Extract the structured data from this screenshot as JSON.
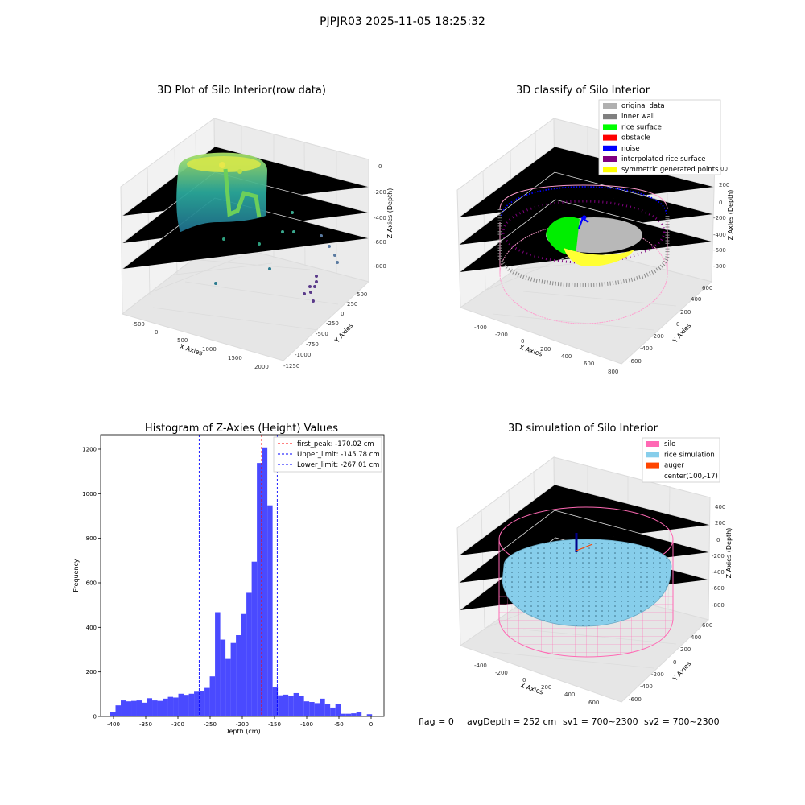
{
  "suptitle": "PJPJR03 2025-11-05 18:25:32",
  "footer": {
    "flag": "flag = 0",
    "avg_depth": "avgDepth = 252 cm",
    "sv1": "sv1 = 700~2300",
    "sv2": "sv2 = 700~2300"
  },
  "colors": {
    "bar": "#4a4aff",
    "peak_line": "#ff0000",
    "limit_line": "#0000ff",
    "original": "#b0b0b0",
    "inner_wall": "#808080",
    "rice_surface": "#00ff00",
    "obstacle": "#ff0000",
    "noise": "#0000ff",
    "interpolated": "#800080",
    "symmetric": "#ffff00",
    "silo": "#ff69b4",
    "rice_sim": "#87ceeb",
    "auger": "#ff4500"
  },
  "plot_raw": {
    "title": "3D Plot of Silo Interior(row data)",
    "xlabel": "X Axies",
    "ylabel": "Y Axies",
    "zlabel": "Z Axies (Depth)",
    "x_ticks": [
      "-500",
      "0",
      "500",
      "1000",
      "1500",
      "2000"
    ],
    "y_ticks": [
      "500",
      "250",
      "0",
      "-250",
      "-500",
      "-750",
      "-1000",
      "-1250"
    ],
    "z_ticks": [
      "0",
      "-200",
      "-400",
      "-600",
      "-800"
    ]
  },
  "plot_classify": {
    "title": "3D classify of Silo Interior",
    "xlabel": "X Axies",
    "ylabel": "Y Axies",
    "zlabel": "Z Axies (Depth)",
    "x_ticks": [
      "-400",
      "-200",
      "0",
      "200",
      "400",
      "600",
      "800"
    ],
    "y_ticks": [
      "600",
      "400",
      "200",
      "0",
      "-200",
      "-400",
      "-600"
    ],
    "z_ticks": [
      "400",
      "200",
      "0",
      "-200",
      "-400",
      "-600",
      "-800"
    ],
    "z_tick_partial": "00",
    "legend": [
      {
        "label": "original data",
        "color": "#b0b0b0"
      },
      {
        "label": "inner wall",
        "color": "#808080"
      },
      {
        "label": "rice surface",
        "color": "#00ff00"
      },
      {
        "label": "obstacle",
        "color": "#ff0000"
      },
      {
        "label": "noise",
        "color": "#0000ff"
      },
      {
        "label": "interpolated rice surface",
        "color": "#800080"
      },
      {
        "label": "symmetric generated points",
        "color": "#ffff00"
      }
    ]
  },
  "plot_sim": {
    "title": "3D simulation of Silo Interior",
    "xlabel": "X Axies",
    "ylabel": "Y Axies",
    "zlabel": "Z Axies (Depth)",
    "x_ticks": [
      "-400",
      "-200",
      "0",
      "200",
      "400",
      "600"
    ],
    "y_ticks": [
      "600",
      "400",
      "200",
      "0",
      "-200",
      "-400",
      "-600"
    ],
    "z_ticks": [
      "400",
      "200",
      "0",
      "-200",
      "-400",
      "-600",
      "-800"
    ],
    "legend": [
      {
        "label": "silo",
        "color": "#ff69b4"
      },
      {
        "label": "rice simulation",
        "color": "#87ceeb"
      },
      {
        "label": "auger",
        "color": "#ff4500"
      },
      {
        "label": "center(100,-17)",
        "color": ""
      }
    ]
  },
  "chart_data": {
    "type": "bar",
    "title": "Histogram of Z-Axies (Height) Values",
    "xlabel": "Depth (cm)",
    "ylabel": "Frequency",
    "xlim": [
      -420,
      20
    ],
    "ylim": [
      0,
      1265
    ],
    "x_ticks": [
      -400,
      -350,
      -300,
      -250,
      -200,
      -150,
      -100,
      -50,
      0
    ],
    "y_ticks": [
      0,
      200,
      400,
      600,
      800,
      1000,
      1200
    ],
    "bin_start": -405,
    "bin_width": 8.13,
    "values": [
      20,
      50,
      72,
      68,
      70,
      72,
      62,
      82,
      72,
      70,
      80,
      88,
      85,
      102,
      97,
      102,
      111,
      112,
      128,
      180,
      468,
      345,
      258,
      330,
      365,
      460,
      555,
      695,
      1138,
      1208,
      948,
      130,
      95,
      98,
      94,
      105,
      94,
      68,
      65,
      60,
      80,
      55,
      40,
      55,
      12,
      12,
      14,
      18,
      0,
      10
    ],
    "vlines": [
      {
        "name": "first_peak",
        "value": -170.02,
        "label": "first_peak: -170.02 cm",
        "color": "#ff0000"
      },
      {
        "name": "Upper_limit",
        "value": -145.78,
        "label": "Upper_limit: -145.78 cm",
        "color": "#0000ff"
      },
      {
        "name": "Lower_limit",
        "value": -267.01,
        "label": "Lower_limit: -267.01 cm",
        "color": "#0000ff"
      }
    ],
    "legend_position": "upper-right"
  }
}
